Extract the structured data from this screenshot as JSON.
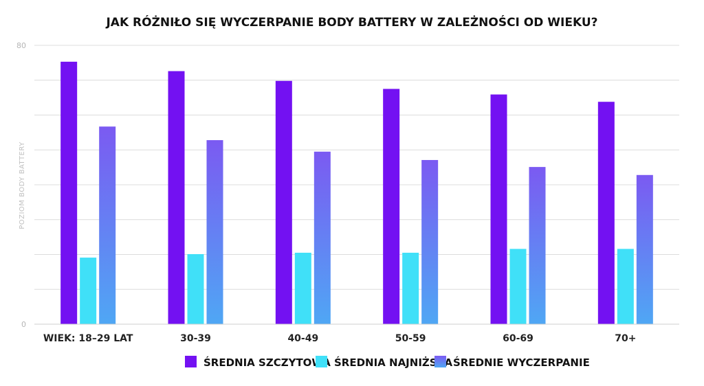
{
  "chart_data": {
    "type": "bar",
    "title": "JAK RÓŻNIŁO SIĘ WYCZERPANIE BODY BATTERY W ZALEŻNOŚCI OD WIEKU?",
    "ylabel": "POZIOM BODY BATTERY",
    "xlabel": "",
    "ylim": [
      0,
      80
    ],
    "yticks": [
      "0",
      "80"
    ],
    "grid": true,
    "legend_position": "bottom",
    "categories": [
      "WIEK: 18–29 LAT",
      "30-39",
      "40-49",
      "50-59",
      "60-69",
      "70+"
    ],
    "series": [
      {
        "name": "ŚREDNIA SZCZYTOWA",
        "values": [
          75.3,
          72.6,
          69.8,
          67.5,
          65.9,
          63.8
        ],
        "color": "#7311f2"
      },
      {
        "name": "ŚREDNIA NAJNIŻSZA",
        "values": [
          19.1,
          20.1,
          20.5,
          20.5,
          21.6,
          21.6
        ],
        "color": "#40e0f8"
      },
      {
        "name": "ŚREDNIE WYCZERPANIE",
        "values": [
          56.7,
          52.8,
          49.5,
          47.1,
          45.1,
          42.8
        ],
        "color_top": "#7b5af2",
        "color_bottom": "#4fa7f4"
      }
    ]
  }
}
